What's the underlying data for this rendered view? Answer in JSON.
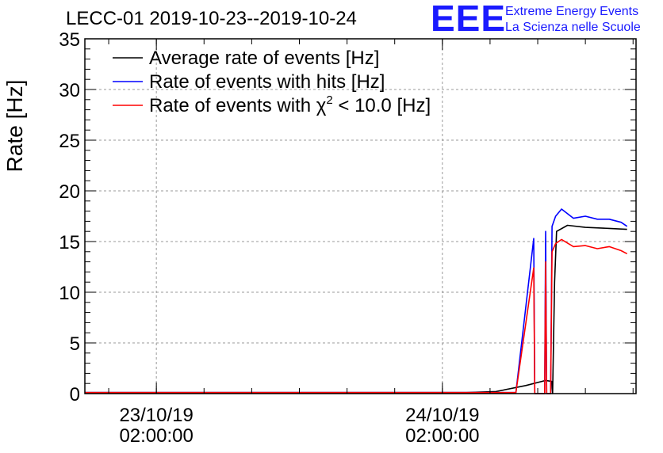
{
  "chart_data": {
    "type": "line",
    "title": "LECC-01 2019-10-23--2019-10-24",
    "ylabel": "Rate [Hz]",
    "xlabel": "",
    "ylim": [
      0,
      35
    ],
    "yticks": [
      0,
      5,
      10,
      15,
      20,
      25,
      30,
      35
    ],
    "xlim": [
      "2019-10-22 20:00:00",
      "2019-10-24 18:15:00"
    ],
    "xticks": [
      {
        "x": "2019-10-23 02:00:00",
        "label_line1": "23/10/19",
        "label_line2": "02:00:00"
      },
      {
        "x": "2019-10-24 02:00:00",
        "label_line1": "24/10/19",
        "label_line2": "02:00:00"
      }
    ],
    "grid": true,
    "legend_position": "top-left",
    "series": [
      {
        "name": "Average rate of events [Hz]",
        "color": "#000000",
        "points": [
          [
            "2019-10-22 20:00:00",
            0.1
          ],
          [
            "2019-10-23 08:00:00",
            0.1
          ],
          [
            "2019-10-23 20:00:00",
            0.1
          ],
          [
            "2019-10-24 04:00:00",
            0.1
          ],
          [
            "2019-10-24 06:30:00",
            0.2
          ],
          [
            "2019-10-24 09:00:00",
            0.8
          ],
          [
            "2019-10-24 10:40:00",
            1.3
          ],
          [
            "2019-10-24 11:10:00",
            1.2
          ],
          [
            "2019-10-24 11:15:00",
            0.0
          ],
          [
            "2019-10-24 11:25:00",
            11.0
          ],
          [
            "2019-10-24 11:35:00",
            16.0
          ],
          [
            "2019-10-24 12:30:00",
            16.6
          ],
          [
            "2019-10-24 14:00:00",
            16.4
          ],
          [
            "2019-10-24 16:00:00",
            16.3
          ],
          [
            "2019-10-24 17:30:00",
            16.2
          ]
        ]
      },
      {
        "name": "Rate of events with hits [Hz]",
        "color": "#0000ff",
        "points": [
          [
            "2019-10-22 20:00:00",
            0.1
          ],
          [
            "2019-10-24 08:10:00",
            0.1
          ],
          [
            "2019-10-24 09:40:00",
            15.3
          ],
          [
            "2019-10-24 09:45:00",
            0.0
          ],
          [
            "2019-10-24 10:35:00",
            0.0
          ],
          [
            "2019-10-24 10:40:00",
            16.0
          ],
          [
            "2019-10-24 10:45:00",
            0.0
          ],
          [
            "2019-10-24 11:05:00",
            0.0
          ],
          [
            "2019-10-24 11:12:00",
            16.5
          ],
          [
            "2019-10-24 11:30:00",
            17.5
          ],
          [
            "2019-10-24 12:00:00",
            18.2
          ],
          [
            "2019-10-24 13:00:00",
            17.3
          ],
          [
            "2019-10-24 14:00:00",
            17.5
          ],
          [
            "2019-10-24 15:00:00",
            17.2
          ],
          [
            "2019-10-24 16:00:00",
            17.2
          ],
          [
            "2019-10-24 17:00:00",
            16.9
          ],
          [
            "2019-10-24 17:30:00",
            16.5
          ]
        ]
      },
      {
        "name": "Rate of events with χ² < 10.0 [Hz]",
        "color": "#ff0000",
        "points": [
          [
            "2019-10-22 20:00:00",
            0.1
          ],
          [
            "2019-10-24 08:10:00",
            0.1
          ],
          [
            "2019-10-24 09:40:00",
            12.4
          ],
          [
            "2019-10-24 09:45:00",
            0.0
          ],
          [
            "2019-10-24 10:35:00",
            0.0
          ],
          [
            "2019-10-24 10:40:00",
            13.0
          ],
          [
            "2019-10-24 10:45:00",
            0.0
          ],
          [
            "2019-10-24 11:05:00",
            0.0
          ],
          [
            "2019-10-24 11:12:00",
            14.0
          ],
          [
            "2019-10-24 11:30:00",
            14.8
          ],
          [
            "2019-10-24 12:00:00",
            15.2
          ],
          [
            "2019-10-24 13:00:00",
            14.5
          ],
          [
            "2019-10-24 14:00:00",
            14.6
          ],
          [
            "2019-10-24 15:00:00",
            14.3
          ],
          [
            "2019-10-24 16:00:00",
            14.5
          ],
          [
            "2019-10-24 17:00:00",
            14.1
          ],
          [
            "2019-10-24 17:30:00",
            13.8
          ]
        ]
      }
    ]
  },
  "legend": {
    "entries": [
      {
        "pre": "Average rate of events [Hz]",
        "sup": "",
        "post": ""
      },
      {
        "pre": "Rate of events with hits [Hz]",
        "sup": "",
        "post": ""
      },
      {
        "pre": "Rate of events with χ",
        "sup": "2",
        "post": " < 10.0 [Hz]"
      }
    ]
  },
  "branding": {
    "logo_text": "EEE",
    "line1": "Extreme Energy Events",
    "line2": "La Scienza nelle Scuole"
  }
}
